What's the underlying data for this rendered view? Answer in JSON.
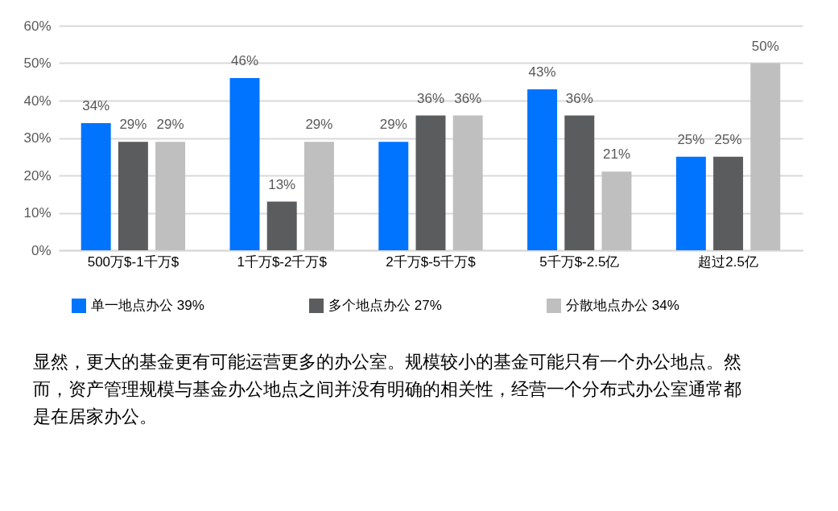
{
  "chart_data": {
    "type": "bar",
    "categories": [
      "500万$-1千万$",
      "1千万$-2千万$",
      "2千万$-5千万$",
      "5千万$-2.5亿",
      "超过2.5亿"
    ],
    "series": [
      {
        "name": "单一地点办公 39%",
        "color": "#0073ff",
        "values": [
          34,
          46,
          29,
          43,
          25
        ],
        "value_labels": [
          "34%",
          "46%",
          "29%",
          "43%",
          "25%"
        ]
      },
      {
        "name": "多个地点办公 27%",
        "color": "#5b5c5e",
        "values": [
          29,
          13,
          36,
          36,
          25
        ],
        "value_labels": [
          "29%",
          "13%",
          "36%",
          "36%",
          "25%"
        ]
      },
      {
        "name": "分散地点办公 34%",
        "color": "#bfbfbf",
        "values": [
          29,
          29,
          36,
          21,
          50
        ],
        "value_labels": [
          "29%",
          "29%",
          "36%",
          "21%",
          "50%"
        ]
      }
    ],
    "ylim": [
      0,
      60
    ],
    "yticks": [
      {
        "value": 0,
        "label": "0%"
      },
      {
        "value": 10,
        "label": "10%"
      },
      {
        "value": 20,
        "label": "20%"
      },
      {
        "value": 30,
        "label": "30%"
      },
      {
        "value": 40,
        "label": "40%"
      },
      {
        "value": 50,
        "label": "50%"
      },
      {
        "value": 60,
        "label": "60%"
      }
    ],
    "grid": "y",
    "legend": "bottom",
    "annotations": [
      "显然，更大的基金更有可能运营更多的办公室。规模较小的基金可能只有一个办公地点。然而，资产管理规模与基金办公地点之间并没有明确的相关性，经营一个分布式办公室通常都是在居家办公。"
    ]
  }
}
